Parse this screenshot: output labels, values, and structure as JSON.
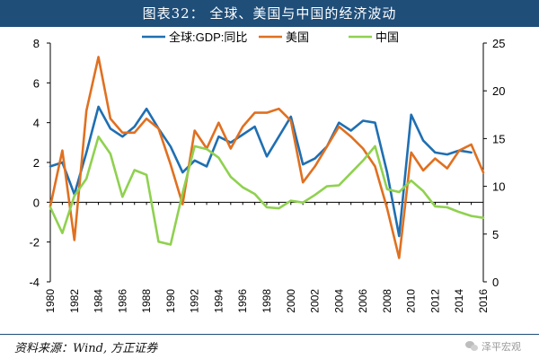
{
  "header": {
    "title": "图表32：   全球、美国与中国的经济波动"
  },
  "footer": {
    "source": "资料来源：Wind, 方正证券",
    "watermark": "泽平宏观"
  },
  "colors": {
    "title_bg": "#1f4e79",
    "global": "#1f6fb2",
    "us": "#e07020",
    "china": "#8fd14f",
    "axis": "#000000"
  },
  "chart_data": {
    "type": "line",
    "title": "",
    "xlabel": "",
    "ylabel": "",
    "x_ticks": [
      "1980",
      "1982",
      "1984",
      "1986",
      "1988",
      "1990",
      "1992",
      "1994",
      "1996",
      "1998",
      "2000",
      "2002",
      "2004",
      "2006",
      "2008",
      "2010",
      "2012",
      "2014",
      "2016"
    ],
    "xlim": [
      1980,
      2016
    ],
    "ylim_left": [
      -4,
      8
    ],
    "yticks_left": [
      8,
      6,
      4,
      2,
      0,
      -2,
      -4
    ],
    "ylim_right": [
      0,
      25
    ],
    "yticks_right": [
      25,
      20,
      15,
      10,
      5,
      0
    ],
    "legend_position": "top",
    "grid": false,
    "series": [
      {
        "name": "全球:GDP:同比",
        "axis": "left",
        "color": "#1f6fb2",
        "x": [
          1980,
          1981,
          1982,
          1983,
          1984,
          1985,
          1986,
          1987,
          1988,
          1989,
          1990,
          1991,
          1992,
          1993,
          1994,
          1995,
          1996,
          1997,
          1998,
          1999,
          2000,
          2001,
          2002,
          2003,
          2004,
          2005,
          2006,
          2007,
          2008,
          2009,
          2010,
          2011,
          2012,
          2013,
          2014,
          2015
        ],
        "values": [
          1.8,
          2.0,
          0.4,
          2.5,
          4.8,
          3.7,
          3.3,
          3.8,
          4.7,
          3.7,
          2.8,
          1.5,
          2.1,
          1.8,
          3.3,
          3.0,
          3.4,
          3.8,
          2.3,
          3.3,
          4.3,
          1.9,
          2.2,
          2.8,
          4.0,
          3.6,
          4.1,
          4.0,
          1.5,
          -1.7,
          4.4,
          3.1,
          2.5,
          2.4,
          2.6,
          2.5
        ]
      },
      {
        "name": "美国",
        "axis": "left",
        "color": "#e07020",
        "x": [
          1980,
          1981,
          1982,
          1983,
          1984,
          1985,
          1986,
          1987,
          1988,
          1989,
          1990,
          1991,
          1992,
          1993,
          1994,
          1995,
          1996,
          1997,
          1998,
          1999,
          2000,
          2001,
          2002,
          2003,
          2004,
          2005,
          2006,
          2007,
          2008,
          2009,
          2010,
          2011,
          2012,
          2013,
          2014,
          2015,
          2016
        ],
        "values": [
          -0.2,
          2.6,
          -1.9,
          4.6,
          7.3,
          4.2,
          3.5,
          3.5,
          4.2,
          3.7,
          1.9,
          -0.1,
          3.6,
          2.7,
          4.0,
          2.7,
          3.8,
          4.5,
          4.5,
          4.7,
          4.1,
          1.0,
          1.8,
          2.8,
          3.8,
          3.3,
          2.7,
          1.8,
          -0.3,
          -2.8,
          2.5,
          1.6,
          2.2,
          1.7,
          2.6,
          2.9,
          1.5
        ]
      },
      {
        "name": "中国",
        "axis": "right",
        "color": "#8fd14f",
        "x": [
          1980,
          1981,
          1982,
          1983,
          1984,
          1985,
          1986,
          1987,
          1988,
          1989,
          1990,
          1991,
          1992,
          1993,
          1994,
          1995,
          1996,
          1997,
          1998,
          1999,
          2000,
          2001,
          2002,
          2003,
          2004,
          2005,
          2006,
          2007,
          2008,
          2009,
          2010,
          2011,
          2012,
          2013,
          2014,
          2015,
          2016
        ],
        "values": [
          7.8,
          5.1,
          9.0,
          10.8,
          15.2,
          13.4,
          8.9,
          11.7,
          11.2,
          4.2,
          3.9,
          9.3,
          14.2,
          13.9,
          13.0,
          11.0,
          9.9,
          9.2,
          7.8,
          7.7,
          8.5,
          8.3,
          9.1,
          10.0,
          10.1,
          11.4,
          12.7,
          14.2,
          9.7,
          9.4,
          10.6,
          9.5,
          7.9,
          7.8,
          7.3,
          6.9,
          6.7
        ]
      }
    ]
  }
}
